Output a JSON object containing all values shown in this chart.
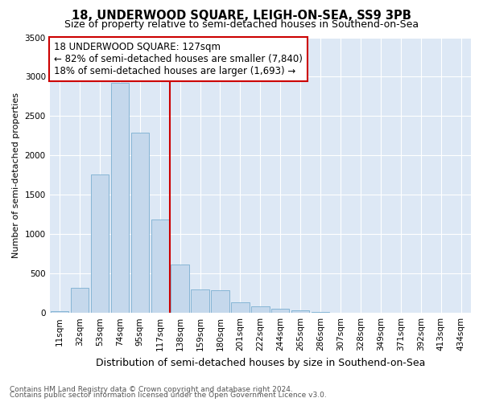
{
  "title": "18, UNDERWOOD SQUARE, LEIGH-ON-SEA, SS9 3PB",
  "subtitle": "Size of property relative to semi-detached houses in Southend-on-Sea",
  "xlabel": "Distribution of semi-detached houses by size in Southend-on-Sea",
  "ylabel": "Number of semi-detached properties",
  "footnote1": "Contains HM Land Registry data © Crown copyright and database right 2024.",
  "footnote2": "Contains public sector information licensed under the Open Government Licence v3.0.",
  "categories": [
    "11sqm",
    "32sqm",
    "53sqm",
    "74sqm",
    "95sqm",
    "117sqm",
    "138sqm",
    "159sqm",
    "180sqm",
    "201sqm",
    "222sqm",
    "244sqm",
    "265sqm",
    "286sqm",
    "307sqm",
    "328sqm",
    "349sqm",
    "371sqm",
    "392sqm",
    "413sqm",
    "434sqm"
  ],
  "values": [
    25,
    320,
    1760,
    2920,
    2290,
    1185,
    610,
    300,
    290,
    135,
    80,
    55,
    35,
    10,
    5,
    3,
    2,
    1,
    1,
    0,
    0
  ],
  "bar_color": "#c5d8ec",
  "bar_edge_color": "#7aaed0",
  "vline_color": "#cc0000",
  "annotation_text": "18 UNDERWOOD SQUARE: 127sqm\n← 82% of semi-detached houses are smaller (7,840)\n18% of semi-detached houses are larger (1,693) →",
  "annotation_box_color": "#ffffff",
  "annotation_box_edge": "#cc0000",
  "ylim": [
    0,
    3500
  ],
  "yticks": [
    0,
    500,
    1000,
    1500,
    2000,
    2500,
    3000,
    3500
  ],
  "bg_color": "#dde8f5",
  "fig_bg_color": "#ffffff",
  "title_fontsize": 10.5,
  "subtitle_fontsize": 9,
  "xlabel_fontsize": 9,
  "ylabel_fontsize": 8,
  "tick_fontsize": 7.5,
  "annotation_fontsize": 8.5,
  "footnote_fontsize": 6.5
}
